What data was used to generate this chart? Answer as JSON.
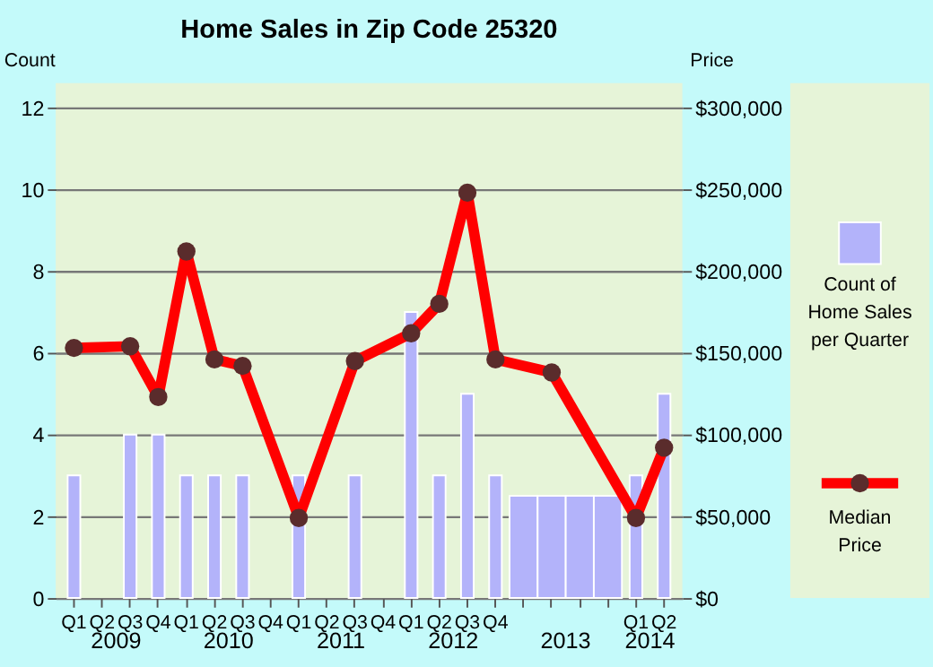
{
  "chart_data": {
    "type": "bar",
    "title": "Home Sales in Zip Code 25320",
    "ylabel": "Count",
    "y2label": "Price",
    "categories": [
      "Q1",
      "Q2",
      "Q3",
      "Q4",
      "Q1",
      "Q2",
      "Q3",
      "Q4",
      "Q1",
      "Q2",
      "Q3",
      "Q4",
      "Q1",
      "Q2",
      "Q3",
      "Q4",
      null,
      null,
      null,
      null,
      "Q1",
      "Q2"
    ],
    "annotations": [
      "2009",
      "2010",
      "2011",
      "2012",
      "2013",
      "2014"
    ],
    "series": [
      {
        "name": "Count of Home Sales per Quarter",
        "color": "#b3b3fa",
        "values": [
          3,
          null,
          4,
          4,
          3,
          3,
          3,
          null,
          3,
          null,
          3,
          null,
          7,
          3,
          5,
          3,
          2.5,
          2.5,
          2.5,
          2.5,
          3,
          5
        ]
      },
      {
        "name": "Median Price",
        "type": "line",
        "axis": "y2",
        "color": "#ff0000",
        "marker": "circle",
        "values": [
          153000,
          null,
          154000,
          123000,
          212000,
          146000,
          142000,
          null,
          49000,
          null,
          145000,
          null,
          162000,
          180000,
          248000,
          146000,
          null,
          138000,
          null,
          null,
          49000,
          92000
        ]
      }
    ],
    "ylim": [
      0,
      12.6
    ],
    "yticks": [
      0,
      2,
      4,
      6,
      8,
      10,
      12
    ],
    "y2lim": [
      0,
      315000
    ],
    "y2ticks": [
      {
        "value": 0,
        "label": "$0"
      },
      {
        "value": 50000,
        "label": "$50,000"
      },
      {
        "value": 100000,
        "label": "$100,000"
      },
      {
        "value": 150000,
        "label": "$150,000"
      },
      {
        "value": 200000,
        "label": "$200,000"
      },
      {
        "value": 250000,
        "label": "$250,000"
      },
      {
        "value": 300000,
        "label": "$300,000"
      }
    ],
    "grid": "y",
    "legend": "right"
  }
}
